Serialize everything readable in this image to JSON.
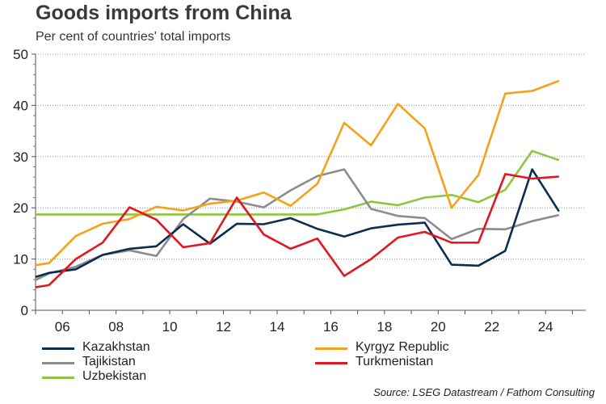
{
  "chart_data": {
    "type": "line",
    "title": "Goods imports from China",
    "subtitle": "Per cent of countries' total imports",
    "source": "Source: LSEG Datastream / Fathom Consulting",
    "xlabel": "",
    "ylabel": "",
    "xlim": [
      2005,
      2025.5
    ],
    "ylim": [
      0,
      50
    ],
    "yticks": [
      0,
      10,
      20,
      30,
      40,
      50
    ],
    "xticks": [
      2006,
      2008,
      2010,
      2012,
      2014,
      2016,
      2018,
      2020,
      2022,
      2024
    ],
    "xtick_labels": [
      "06",
      "08",
      "10",
      "12",
      "14",
      "16",
      "18",
      "20",
      "22",
      "24"
    ],
    "grid": "horizontal",
    "x": [
      2005,
      2005.5,
      2006.5,
      2007.5,
      2008.5,
      2009.5,
      2010.5,
      2011.5,
      2012.5,
      2013.5,
      2014.5,
      2015.5,
      2016.5,
      2017.5,
      2018.5,
      2019.5,
      2020.5,
      2021.5,
      2022.5,
      2023.5,
      2024.5
    ],
    "series": [
      {
        "name": "Kazakhstan",
        "color": "#0b2d52",
        "values": [
          6.5,
          7.3,
          8.0,
          10.8,
          12.0,
          12.5,
          16.8,
          13.0,
          16.9,
          16.8,
          18.0,
          15.9,
          14.4,
          16.0,
          16.7,
          17.1,
          8.9,
          8.7,
          11.6,
          27.5,
          19.3
        ]
      },
      {
        "name": "Kyrgyz Republic",
        "color": "#f5a21b",
        "values": [
          8.8,
          9.2,
          14.5,
          16.9,
          17.8,
          20.2,
          19.5,
          20.8,
          21.4,
          23.0,
          20.4,
          24.7,
          36.6,
          32.2,
          40.3,
          35.5,
          20.0,
          26.4,
          42.3,
          42.8,
          44.8
        ]
      },
      {
        "name": "Tajikistan",
        "color": "#8c8c8c",
        "values": [
          5.9,
          7.2,
          8.5,
          10.8,
          11.7,
          10.6,
          17.8,
          21.8,
          21.2,
          20.1,
          23.4,
          26.2,
          27.5,
          19.8,
          18.4,
          18.0,
          13.9,
          15.9,
          15.8,
          17.4,
          18.6
        ]
      },
      {
        "name": "Turkmenistan",
        "color": "#e0171f",
        "values": [
          4.5,
          4.9,
          10.0,
          13.2,
          20.1,
          17.7,
          12.3,
          13.1,
          22.0,
          14.8,
          12.0,
          14.0,
          6.7,
          10.0,
          14.2,
          15.3,
          13.2,
          13.2,
          26.6,
          25.7,
          26.1
        ]
      },
      {
        "name": "Uzbekistan",
        "color": "#8cc63f",
        "values": [
          18.7,
          18.7,
          18.7,
          18.7,
          18.7,
          18.7,
          18.7,
          18.7,
          18.7,
          18.7,
          18.7,
          18.7,
          19.7,
          21.2,
          20.5,
          22.0,
          22.5,
          21.1,
          23.5,
          31.1,
          29.3
        ]
      }
    ],
    "legend_position": "bottom"
  }
}
